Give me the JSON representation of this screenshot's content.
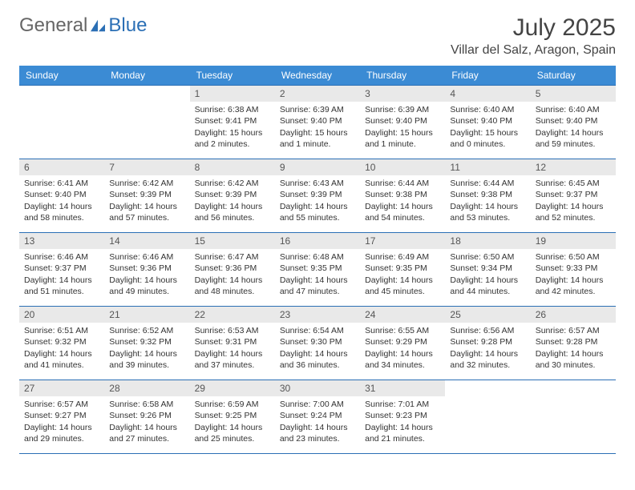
{
  "branding": {
    "word1": "General",
    "word2": "Blue",
    "logo_color": "#2b6fb5"
  },
  "header": {
    "title": "July 2025",
    "location": "Villar del Salz, Aragon, Spain"
  },
  "calendar": {
    "type": "table",
    "columns": [
      "Sunday",
      "Monday",
      "Tuesday",
      "Wednesday",
      "Thursday",
      "Friday",
      "Saturday"
    ],
    "header_bg": "#3b8bd4",
    "header_fg": "#ffffff",
    "daynum_bg": "#e9e9e9",
    "border_color": "#2b6fb5",
    "weeks": [
      [
        {
          "n": "",
          "sr": "",
          "ss": "",
          "dl": ""
        },
        {
          "n": "",
          "sr": "",
          "ss": "",
          "dl": ""
        },
        {
          "n": "1",
          "sr": "Sunrise: 6:38 AM",
          "ss": "Sunset: 9:41 PM",
          "dl": "Daylight: 15 hours and 2 minutes."
        },
        {
          "n": "2",
          "sr": "Sunrise: 6:39 AM",
          "ss": "Sunset: 9:40 PM",
          "dl": "Daylight: 15 hours and 1 minute."
        },
        {
          "n": "3",
          "sr": "Sunrise: 6:39 AM",
          "ss": "Sunset: 9:40 PM",
          "dl": "Daylight: 15 hours and 1 minute."
        },
        {
          "n": "4",
          "sr": "Sunrise: 6:40 AM",
          "ss": "Sunset: 9:40 PM",
          "dl": "Daylight: 15 hours and 0 minutes."
        },
        {
          "n": "5",
          "sr": "Sunrise: 6:40 AM",
          "ss": "Sunset: 9:40 PM",
          "dl": "Daylight: 14 hours and 59 minutes."
        }
      ],
      [
        {
          "n": "6",
          "sr": "Sunrise: 6:41 AM",
          "ss": "Sunset: 9:40 PM",
          "dl": "Daylight: 14 hours and 58 minutes."
        },
        {
          "n": "7",
          "sr": "Sunrise: 6:42 AM",
          "ss": "Sunset: 9:39 PM",
          "dl": "Daylight: 14 hours and 57 minutes."
        },
        {
          "n": "8",
          "sr": "Sunrise: 6:42 AM",
          "ss": "Sunset: 9:39 PM",
          "dl": "Daylight: 14 hours and 56 minutes."
        },
        {
          "n": "9",
          "sr": "Sunrise: 6:43 AM",
          "ss": "Sunset: 9:39 PM",
          "dl": "Daylight: 14 hours and 55 minutes."
        },
        {
          "n": "10",
          "sr": "Sunrise: 6:44 AM",
          "ss": "Sunset: 9:38 PM",
          "dl": "Daylight: 14 hours and 54 minutes."
        },
        {
          "n": "11",
          "sr": "Sunrise: 6:44 AM",
          "ss": "Sunset: 9:38 PM",
          "dl": "Daylight: 14 hours and 53 minutes."
        },
        {
          "n": "12",
          "sr": "Sunrise: 6:45 AM",
          "ss": "Sunset: 9:37 PM",
          "dl": "Daylight: 14 hours and 52 minutes."
        }
      ],
      [
        {
          "n": "13",
          "sr": "Sunrise: 6:46 AM",
          "ss": "Sunset: 9:37 PM",
          "dl": "Daylight: 14 hours and 51 minutes."
        },
        {
          "n": "14",
          "sr": "Sunrise: 6:46 AM",
          "ss": "Sunset: 9:36 PM",
          "dl": "Daylight: 14 hours and 49 minutes."
        },
        {
          "n": "15",
          "sr": "Sunrise: 6:47 AM",
          "ss": "Sunset: 9:36 PM",
          "dl": "Daylight: 14 hours and 48 minutes."
        },
        {
          "n": "16",
          "sr": "Sunrise: 6:48 AM",
          "ss": "Sunset: 9:35 PM",
          "dl": "Daylight: 14 hours and 47 minutes."
        },
        {
          "n": "17",
          "sr": "Sunrise: 6:49 AM",
          "ss": "Sunset: 9:35 PM",
          "dl": "Daylight: 14 hours and 45 minutes."
        },
        {
          "n": "18",
          "sr": "Sunrise: 6:50 AM",
          "ss": "Sunset: 9:34 PM",
          "dl": "Daylight: 14 hours and 44 minutes."
        },
        {
          "n": "19",
          "sr": "Sunrise: 6:50 AM",
          "ss": "Sunset: 9:33 PM",
          "dl": "Daylight: 14 hours and 42 minutes."
        }
      ],
      [
        {
          "n": "20",
          "sr": "Sunrise: 6:51 AM",
          "ss": "Sunset: 9:32 PM",
          "dl": "Daylight: 14 hours and 41 minutes."
        },
        {
          "n": "21",
          "sr": "Sunrise: 6:52 AM",
          "ss": "Sunset: 9:32 PM",
          "dl": "Daylight: 14 hours and 39 minutes."
        },
        {
          "n": "22",
          "sr": "Sunrise: 6:53 AM",
          "ss": "Sunset: 9:31 PM",
          "dl": "Daylight: 14 hours and 37 minutes."
        },
        {
          "n": "23",
          "sr": "Sunrise: 6:54 AM",
          "ss": "Sunset: 9:30 PM",
          "dl": "Daylight: 14 hours and 36 minutes."
        },
        {
          "n": "24",
          "sr": "Sunrise: 6:55 AM",
          "ss": "Sunset: 9:29 PM",
          "dl": "Daylight: 14 hours and 34 minutes."
        },
        {
          "n": "25",
          "sr": "Sunrise: 6:56 AM",
          "ss": "Sunset: 9:28 PM",
          "dl": "Daylight: 14 hours and 32 minutes."
        },
        {
          "n": "26",
          "sr": "Sunrise: 6:57 AM",
          "ss": "Sunset: 9:28 PM",
          "dl": "Daylight: 14 hours and 30 minutes."
        }
      ],
      [
        {
          "n": "27",
          "sr": "Sunrise: 6:57 AM",
          "ss": "Sunset: 9:27 PM",
          "dl": "Daylight: 14 hours and 29 minutes."
        },
        {
          "n": "28",
          "sr": "Sunrise: 6:58 AM",
          "ss": "Sunset: 9:26 PM",
          "dl": "Daylight: 14 hours and 27 minutes."
        },
        {
          "n": "29",
          "sr": "Sunrise: 6:59 AM",
          "ss": "Sunset: 9:25 PM",
          "dl": "Daylight: 14 hours and 25 minutes."
        },
        {
          "n": "30",
          "sr": "Sunrise: 7:00 AM",
          "ss": "Sunset: 9:24 PM",
          "dl": "Daylight: 14 hours and 23 minutes."
        },
        {
          "n": "31",
          "sr": "Sunrise: 7:01 AM",
          "ss": "Sunset: 9:23 PM",
          "dl": "Daylight: 14 hours and 21 minutes."
        },
        {
          "n": "",
          "sr": "",
          "ss": "",
          "dl": ""
        },
        {
          "n": "",
          "sr": "",
          "ss": "",
          "dl": ""
        }
      ]
    ]
  }
}
